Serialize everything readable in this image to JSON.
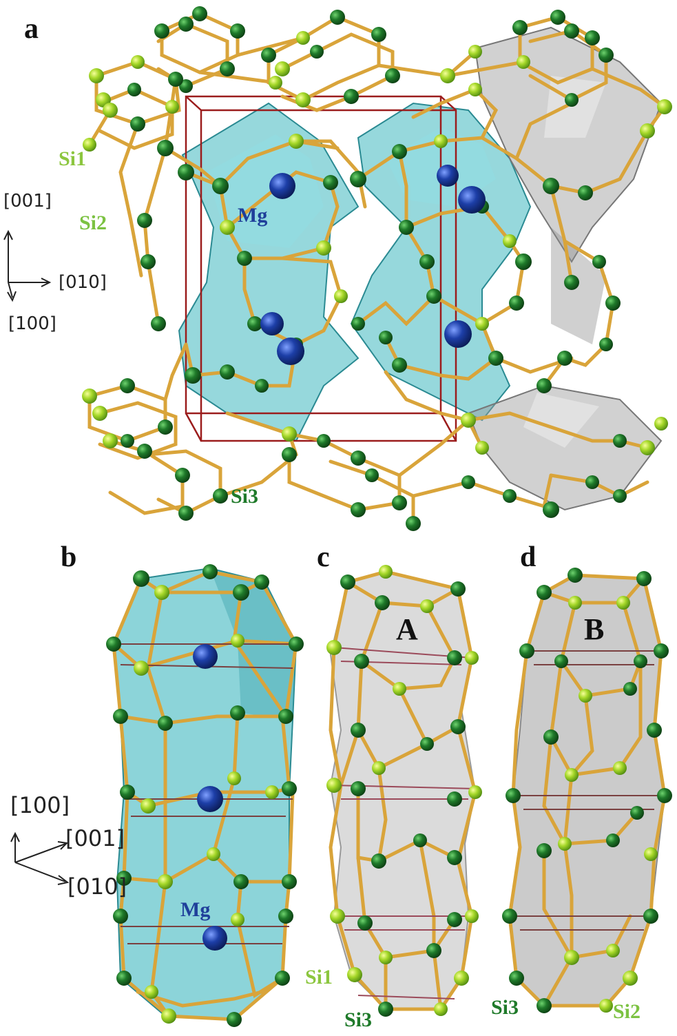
{
  "panels": {
    "a": {
      "letter": "a",
      "labels": {
        "si1": "Si1",
        "si2": "Si2",
        "si3": "Si3",
        "mg": "Mg"
      },
      "axes": {
        "z": "[001]",
        "y": "[010]",
        "x": "[100]"
      }
    },
    "b": {
      "letter": "b",
      "labels": {
        "mg": "Mg"
      },
      "axes": {
        "up": "[100]",
        "diag": "[001]",
        "right": "[010]"
      }
    },
    "c": {
      "letter": "c",
      "cage": "A",
      "labels": {
        "si1": "Si1",
        "si3": "Si3"
      }
    },
    "d": {
      "letter": "d",
      "cage": "B",
      "labels": {
        "si3": "Si3",
        "si2": "Si2"
      }
    }
  },
  "colors": {
    "bond": "#d9a43a",
    "bond_dark": "#b07a18",
    "atom_dark_green": "#1f7a2a",
    "atom_light_green": "#a6d82a",
    "mg": "#1d3fa8",
    "cage_cyan": "#3fb8c0",
    "cage_gray": "#9a9a9a",
    "unit_cell": "#9b1c1c",
    "label_si1": "#8cc63f",
    "label_si2": "#7cc242",
    "label_si3": "#1f7a2a",
    "label_mg": "#1f3f9a"
  }
}
